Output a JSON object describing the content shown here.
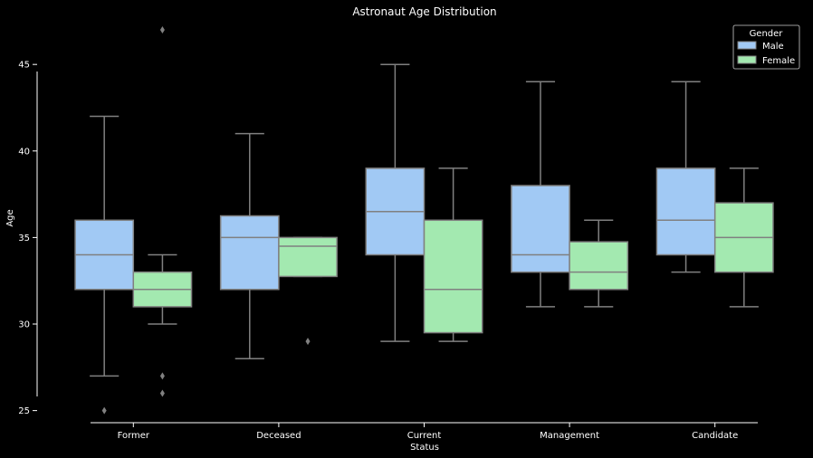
{
  "chart_data": {
    "type": "box",
    "title": "Astronaut Age Distribution",
    "xlabel": "Status",
    "ylabel": "Age",
    "ylim": [
      24.3,
      48.2
    ],
    "yticks": [
      25,
      30,
      35,
      40,
      45
    ],
    "categories": [
      "Former",
      "Deceased",
      "Current",
      "Management",
      "Candidate"
    ],
    "legend": {
      "title": "Gender",
      "position": "top-right"
    },
    "series": [
      {
        "name": "Male",
        "color": "#a1c9f4",
        "boxes": [
          {
            "whisker_low": 27,
            "q1": 32,
            "median": 34,
            "q3": 36,
            "whisker_high": 42,
            "outliers": [
              25
            ]
          },
          {
            "whisker_low": 28,
            "q1": 32,
            "median": 35,
            "q3": 36.25,
            "whisker_high": 41,
            "outliers": []
          },
          {
            "whisker_low": 29,
            "q1": 34,
            "median": 36.5,
            "q3": 39,
            "whisker_high": 45,
            "outliers": []
          },
          {
            "whisker_low": 31,
            "q1": 33,
            "median": 34,
            "q3": 38,
            "whisker_high": 44,
            "outliers": []
          },
          {
            "whisker_low": 33,
            "q1": 34,
            "median": 36,
            "q3": 39,
            "whisker_high": 44,
            "outliers": []
          }
        ]
      },
      {
        "name": "Female",
        "color": "#a3e9b0",
        "boxes": [
          {
            "whisker_low": 30,
            "q1": 31,
            "median": 32,
            "q3": 33,
            "whisker_high": 34,
            "outliers": [
              27,
              26,
              47
            ]
          },
          {
            "whisker_low": 32.75,
            "q1": 32.75,
            "median": 34.5,
            "q3": 35,
            "whisker_high": 35,
            "outliers": [
              29
            ]
          },
          {
            "whisker_low": 29,
            "q1": 29.5,
            "median": 32,
            "q3": 36,
            "whisker_high": 39,
            "outliers": []
          },
          {
            "whisker_low": 31,
            "q1": 32,
            "median": 33,
            "q3": 34.75,
            "whisker_high": 36,
            "outliers": []
          },
          {
            "whisker_low": 31,
            "q1": 33,
            "median": 35,
            "q3": 37,
            "whisker_high": 39,
            "outliers": []
          }
        ]
      }
    ],
    "grid": false,
    "background": "#000000",
    "line_color": "#808080",
    "axis_color": "#ffffff"
  }
}
